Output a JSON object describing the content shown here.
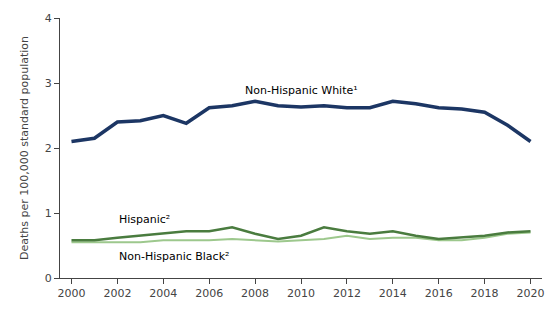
{
  "chart_data": {
    "type": "line",
    "x": [
      2000,
      2001,
      2002,
      2003,
      2004,
      2005,
      2006,
      2007,
      2008,
      2009,
      2010,
      2011,
      2012,
      2013,
      2014,
      2015,
      2016,
      2017,
      2018,
      2019,
      2020
    ],
    "series": [
      {
        "name": "Non-Hispanic Black²",
        "color": "#9dc88d",
        "values": [
          0.55,
          0.55,
          0.55,
          0.55,
          0.58,
          0.58,
          0.58,
          0.6,
          0.58,
          0.56,
          0.58,
          0.6,
          0.65,
          0.6,
          0.62,
          0.62,
          0.58,
          0.58,
          0.62,
          0.68,
          0.7
        ]
      },
      {
        "name": "Hispanic²",
        "color": "#4a7c3f",
        "values": [
          0.58,
          0.58,
          0.62,
          0.65,
          0.68,
          0.72,
          0.72,
          0.78,
          0.68,
          0.6,
          0.65,
          0.78,
          0.72,
          0.68,
          0.72,
          0.65,
          0.6,
          0.62,
          0.65,
          0.7,
          0.72
        ]
      },
      {
        "name": "Non-Hispanic White¹",
        "color": "#1c3664",
        "values": [
          2.1,
          2.15,
          2.4,
          2.42,
          2.5,
          2.38,
          2.62,
          2.65,
          2.72,
          2.65,
          2.63,
          2.65,
          2.62,
          2.62,
          2.72,
          2.68,
          2.62,
          2.6,
          2.55,
          2.35,
          2.1
        ]
      }
    ],
    "ylabel": "Deaths per 100,000 standard population",
    "xlim": [
      1999.5,
      2020.5
    ],
    "xticks": [
      2000,
      2002,
      2004,
      2006,
      2008,
      2010,
      2012,
      2014,
      2016,
      2018,
      2020
    ],
    "ylim": [
      0,
      4
    ],
    "yticks": [
      0,
      1,
      2,
      3,
      4
    ],
    "grid": false
  }
}
